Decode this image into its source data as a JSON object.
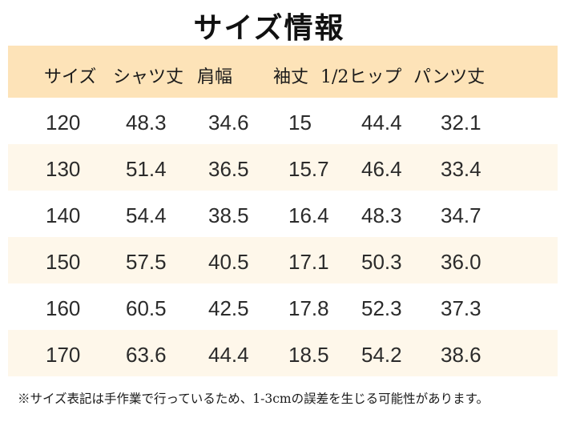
{
  "title": "サイズ情報",
  "table": {
    "headers": [
      "サイズ",
      "シャツ丈",
      "肩幅",
      "袖丈",
      "1/2ヒップ",
      "パンツ丈"
    ],
    "rows": [
      [
        "120",
        "48.3",
        "34.6",
        "15",
        "44.4",
        "32.1"
      ],
      [
        "130",
        "51.4",
        "36.5",
        "15.7",
        "46.4",
        "33.4"
      ],
      [
        "140",
        "54.4",
        "38.5",
        "16.4",
        "48.3",
        "34.7"
      ],
      [
        "150",
        "57.5",
        "40.5",
        "17.1",
        "50.3",
        "36.0"
      ],
      [
        "160",
        "60.5",
        "42.5",
        "17.8",
        "52.3",
        "37.3"
      ],
      [
        "170",
        "63.6",
        "44.4",
        "18.5",
        "54.2",
        "38.6"
      ]
    ]
  },
  "note": "※サイズ表記は手作業で行っているため、1-3cmの誤差を生じる可能性があります。",
  "colors": {
    "header_bg": "#fde3b8",
    "shaded_row_bg": "#fef7ea"
  }
}
